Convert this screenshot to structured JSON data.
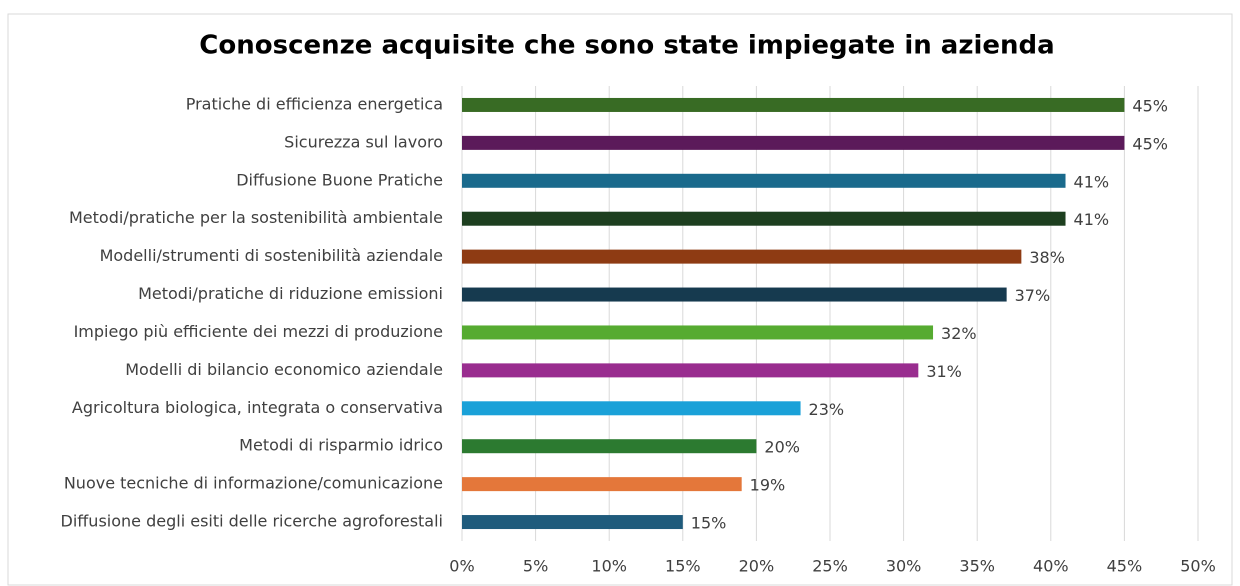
{
  "chart_data": {
    "type": "hbar",
    "title": "Conoscenze acquisite che sono state impiegate in azienda",
    "categories": [
      "Pratiche di efficienza energetica",
      "Sicurezza sul lavoro",
      "Diffusione Buone Pratiche",
      "Metodi/pratiche per la sostenibilità ambientale",
      "Modelli/strumenti di sostenibilità aziendale",
      "Metodi/pratiche di riduzione emissioni",
      "Impiego più efficiente dei mezzi di produzione",
      "Modelli di bilancio economico aziendale",
      "Agricoltura biologica, integrata o conservativa",
      "Metodi di risparmio idrico",
      "Nuove tecniche di informazione/comunicazione",
      "Diffusione degli esiti delle ricerche agroforestali"
    ],
    "values": [
      45,
      45,
      41,
      41,
      38,
      37,
      32,
      31,
      23,
      20,
      19,
      15
    ],
    "value_labels": [
      "45%",
      "45%",
      "41%",
      "41%",
      "38%",
      "37%",
      "32%",
      "31%",
      "23%",
      "20%",
      "19%",
      "15%"
    ],
    "colors": [
      "#386b24",
      "#5b1a5a",
      "#1a6a8c",
      "#1d3f1f",
      "#8e3b13",
      "#163a4f",
      "#56ab31",
      "#992d8f",
      "#1aa1d8",
      "#2c7a30",
      "#e4773a",
      "#1f5b7c"
    ],
    "xlim": [
      0,
      50
    ],
    "xticks": [
      {
        "value": 0,
        "label": "0%"
      },
      {
        "value": 5,
        "label": "5%"
      },
      {
        "value": 10,
        "label": "10%"
      },
      {
        "value": 15,
        "label": "15%"
      },
      {
        "value": 20,
        "label": "20%"
      },
      {
        "value": 25,
        "label": "25%"
      },
      {
        "value": 30,
        "label": "30%"
      },
      {
        "value": 35,
        "label": "35%"
      },
      {
        "value": 40,
        "label": "40%"
      },
      {
        "value": 45,
        "label": "45%"
      },
      {
        "value": 50,
        "label": "50%"
      }
    ],
    "grid": true
  }
}
